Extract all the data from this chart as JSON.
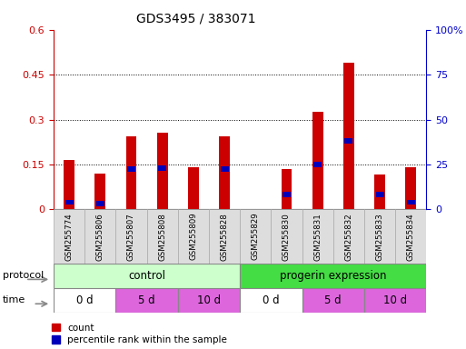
{
  "title": "GDS3495 / 383071",
  "samples": [
    "GSM255774",
    "GSM255806",
    "GSM255807",
    "GSM255808",
    "GSM255809",
    "GSM255828",
    "GSM255829",
    "GSM255830",
    "GSM255831",
    "GSM255832",
    "GSM255833",
    "GSM255834"
  ],
  "count_values": [
    0.165,
    0.12,
    0.245,
    0.255,
    0.14,
    0.245,
    0.0,
    0.135,
    0.325,
    0.49,
    0.115,
    0.14
  ],
  "percentile_bottom": [
    0.015,
    0.01,
    0.125,
    0.13,
    0.0,
    0.125,
    0.0,
    0.04,
    0.14,
    0.22,
    0.04,
    0.015
  ],
  "percentile_height": [
    0.018,
    0.018,
    0.018,
    0.018,
    0.0,
    0.018,
    0.0,
    0.018,
    0.018,
    0.018,
    0.018,
    0.018
  ],
  "ylim_left": [
    0,
    0.6
  ],
  "ylim_right": [
    0,
    100
  ],
  "yticks_left": [
    0,
    0.15,
    0.3,
    0.45,
    0.6
  ],
  "yticks_right": [
    0,
    25,
    50,
    75,
    100
  ],
  "count_color": "#cc0000",
  "percentile_color": "#0000bb",
  "bar_width": 0.35,
  "count_color_hex": "#cc0000",
  "percentile_color_hex": "#0000bb",
  "legend_count_label": "count",
  "legend_percentile_label": "percentile rank within the sample",
  "xlabel_protocol": "protocol",
  "xlabel_time": "time",
  "background_color": "#ffffff",
  "tick_label_color_left": "#cc0000",
  "tick_label_color_right": "#0000cc",
  "protocol_light_color": "#ccffcc",
  "protocol_dark_color": "#44dd44",
  "time_white_color": "#ffffff",
  "time_pink_color": "#dd66dd"
}
